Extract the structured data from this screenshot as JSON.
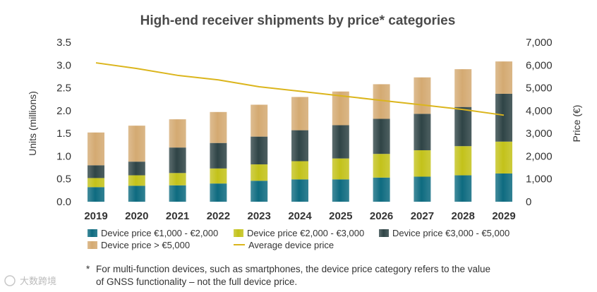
{
  "chart_data": {
    "type": "bar",
    "stacked": true,
    "title": "High-end receiver shipments by price* categories",
    "ylabel": "Units (millions)",
    "y2label": "Price (€)",
    "ylim": [
      0,
      3.5
    ],
    "y2lim": [
      0,
      7000
    ],
    "yticks": [
      "0.0",
      "0.5",
      "1.0",
      "1.5",
      "2.0",
      "2.5",
      "3.0",
      "3.5"
    ],
    "y2ticks": [
      "0",
      "1,000",
      "2,000",
      "3,000",
      "4,000",
      "5,000",
      "6,000",
      "7,000"
    ],
    "categories": [
      "2019",
      "2020",
      "2021",
      "2022",
      "2023",
      "2024",
      "2025",
      "2026",
      "2027",
      "2028",
      "2029"
    ],
    "series": [
      {
        "name": "Device price €1,000 - €2,000",
        "color": "#0e6b80",
        "values": [
          0.32,
          0.35,
          0.36,
          0.4,
          0.46,
          0.49,
          0.49,
          0.53,
          0.55,
          0.58,
          0.62
        ]
      },
      {
        "name": "Device price €2,000 - €3,000",
        "color": "#c3c21a",
        "values": [
          0.2,
          0.23,
          0.27,
          0.33,
          0.36,
          0.4,
          0.46,
          0.52,
          0.58,
          0.64,
          0.7
        ]
      },
      {
        "name": "Device price €3,000 - €5,000",
        "color": "#2f4446",
        "values": [
          0.28,
          0.3,
          0.56,
          0.56,
          0.61,
          0.68,
          0.73,
          0.77,
          0.8,
          0.86,
          1.05
        ]
      },
      {
        "name": "Device price > €5,000",
        "color": "#d4aa72",
        "values": [
          0.72,
          0.79,
          0.62,
          0.68,
          0.7,
          0.73,
          0.74,
          0.76,
          0.8,
          0.83,
          0.71
        ]
      }
    ],
    "line": {
      "name": "Average device price",
      "color": "#dbb51c",
      "axis": "right",
      "values": [
        6100,
        5850,
        5550,
        5350,
        5050,
        4850,
        4650,
        4450,
        4250,
        4050,
        3800
      ]
    },
    "legend_position": "bottom",
    "grid": false
  },
  "footnote": {
    "marker": "*",
    "line1": "For multi-function devices, such as smartphones, the device price category refers to the value",
    "line2": "of GNSS functionality – not the full device price."
  },
  "watermark": "大数跨境"
}
